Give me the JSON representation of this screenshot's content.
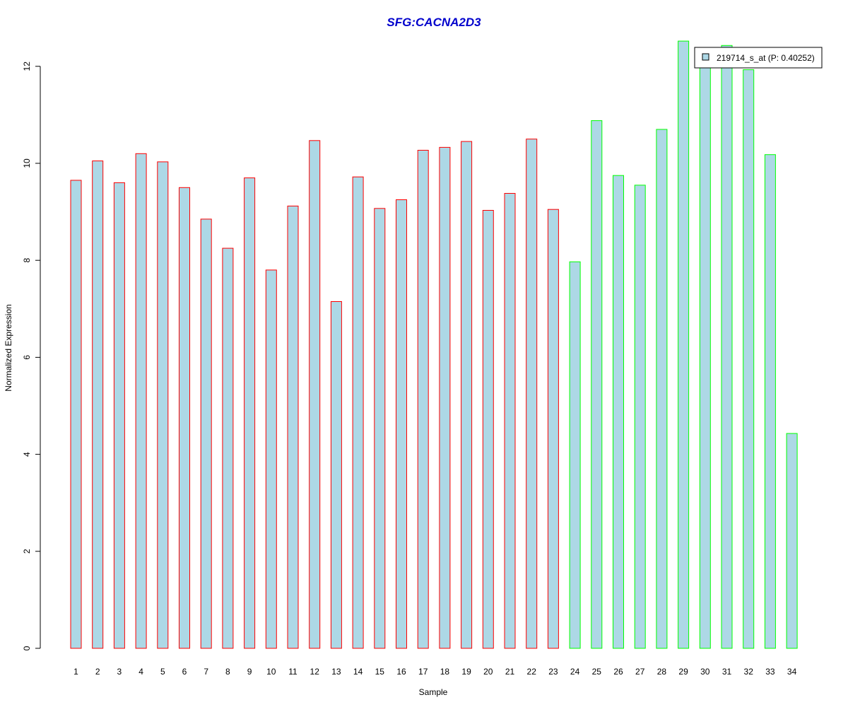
{
  "chart_data": {
    "type": "bar",
    "title": "SFG:CACNA2D3",
    "xlabel": "Sample",
    "ylabel": "Normalized Expression",
    "categories": [
      "1",
      "2",
      "3",
      "4",
      "5",
      "6",
      "7",
      "8",
      "9",
      "10",
      "11",
      "12",
      "13",
      "14",
      "15",
      "16",
      "17",
      "18",
      "19",
      "20",
      "21",
      "22",
      "23",
      "24",
      "25",
      "26",
      "27",
      "28",
      "29",
      "30",
      "31",
      "32",
      "33",
      "34"
    ],
    "series": [
      {
        "name": "219714_s_at (P: 0.40252)",
        "values": [
          9.65,
          10.05,
          9.6,
          10.2,
          10.03,
          9.5,
          8.85,
          8.25,
          9.7,
          7.8,
          9.12,
          10.47,
          7.15,
          9.72,
          9.07,
          9.25,
          10.27,
          10.33,
          10.45,
          9.03,
          9.38,
          10.5,
          9.05,
          7.97,
          10.88,
          9.75,
          9.55,
          10.7,
          12.52,
          12.05,
          12.43,
          11.93,
          10.18,
          4.43
        ]
      }
    ],
    "ylim": [
      0,
      12.5
    ],
    "yticks": [
      0,
      2,
      4,
      6,
      8,
      10,
      12
    ],
    "legend_position": "top-right",
    "grid": false,
    "colors": {
      "title": "#0000cc",
      "bar_fill": "#add8e6",
      "group1_border": "#ff0000",
      "group2_border": "#00ff00",
      "group1_count": 23
    }
  }
}
